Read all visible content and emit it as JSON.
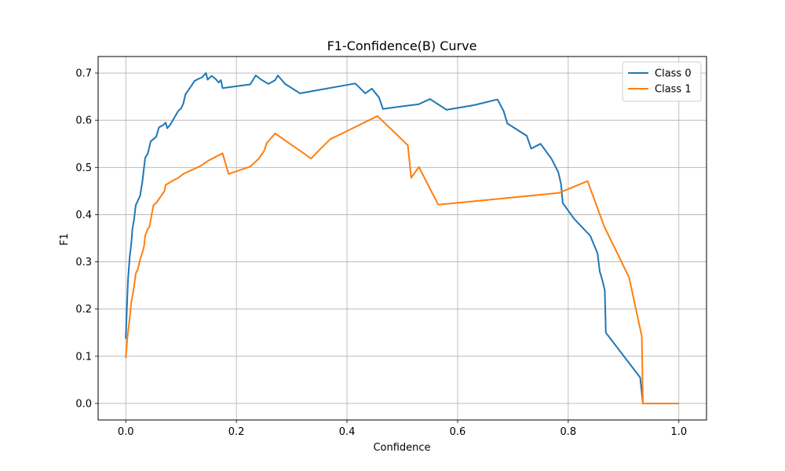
{
  "chart_data": {
    "type": "line",
    "title": "F1-Confidence(B) Curve",
    "xlabel": "Confidence",
    "ylabel": "F1",
    "xlim": [
      -0.05,
      1.05
    ],
    "ylim": [
      -0.035,
      0.735
    ],
    "grid": true,
    "legend_position": "top-right",
    "xticks": [
      "0.0",
      "0.2",
      "0.4",
      "0.6",
      "0.8",
      "1.0"
    ],
    "yticks": [
      "0.0",
      "0.1",
      "0.2",
      "0.3",
      "0.4",
      "0.5",
      "0.6",
      "0.7"
    ],
    "series": [
      {
        "name": "Class 0",
        "color": "#1f77b4",
        "points": [
          [
            0.0,
            0.137
          ],
          [
            0.002,
            0.2
          ],
          [
            0.004,
            0.26
          ],
          [
            0.007,
            0.31
          ],
          [
            0.01,
            0.34
          ],
          [
            0.012,
            0.37
          ],
          [
            0.015,
            0.39
          ],
          [
            0.018,
            0.42
          ],
          [
            0.022,
            0.43
          ],
          [
            0.026,
            0.44
          ],
          [
            0.03,
            0.47
          ],
          [
            0.032,
            0.49
          ],
          [
            0.035,
            0.52
          ],
          [
            0.04,
            0.53
          ],
          [
            0.045,
            0.555
          ],
          [
            0.05,
            0.56
          ],
          [
            0.055,
            0.565
          ],
          [
            0.06,
            0.585
          ],
          [
            0.068,
            0.59
          ],
          [
            0.072,
            0.595
          ],
          [
            0.075,
            0.583
          ],
          [
            0.08,
            0.59
          ],
          [
            0.085,
            0.6
          ],
          [
            0.09,
            0.61
          ],
          [
            0.095,
            0.62
          ],
          [
            0.1,
            0.625
          ],
          [
            0.104,
            0.635
          ],
          [
            0.108,
            0.655
          ],
          [
            0.114,
            0.665
          ],
          [
            0.118,
            0.672
          ],
          [
            0.124,
            0.683
          ],
          [
            0.132,
            0.688
          ],
          [
            0.138,
            0.691
          ],
          [
            0.145,
            0.7
          ],
          [
            0.148,
            0.686
          ],
          [
            0.155,
            0.694
          ],
          [
            0.162,
            0.688
          ],
          [
            0.168,
            0.68
          ],
          [
            0.172,
            0.685
          ],
          [
            0.175,
            0.668
          ],
          [
            0.225,
            0.676
          ],
          [
            0.235,
            0.695
          ],
          [
            0.245,
            0.686
          ],
          [
            0.258,
            0.677
          ],
          [
            0.27,
            0.685
          ],
          [
            0.275,
            0.695
          ],
          [
            0.288,
            0.677
          ],
          [
            0.315,
            0.657
          ],
          [
            0.415,
            0.678
          ],
          [
            0.433,
            0.657
          ],
          [
            0.445,
            0.667
          ],
          [
            0.458,
            0.648
          ],
          [
            0.465,
            0.624
          ],
          [
            0.53,
            0.634
          ],
          [
            0.55,
            0.645
          ],
          [
            0.58,
            0.622
          ],
          [
            0.63,
            0.632
          ],
          [
            0.672,
            0.644
          ],
          [
            0.683,
            0.62
          ],
          [
            0.69,
            0.593
          ],
          [
            0.725,
            0.567
          ],
          [
            0.733,
            0.54
          ],
          [
            0.75,
            0.55
          ],
          [
            0.77,
            0.518
          ],
          [
            0.782,
            0.49
          ],
          [
            0.787,
            0.465
          ],
          [
            0.79,
            0.425
          ],
          [
            0.81,
            0.392
          ],
          [
            0.84,
            0.355
          ],
          [
            0.853,
            0.318
          ],
          [
            0.857,
            0.28
          ],
          [
            0.862,
            0.26
          ],
          [
            0.866,
            0.24
          ],
          [
            0.868,
            0.15
          ],
          [
            0.93,
            0.055
          ],
          [
            0.935,
            0.0
          ],
          [
            1.0,
            0.0
          ]
        ]
      },
      {
        "name": "Class 1",
        "color": "#ff7f0e",
        "points": [
          [
            0.0,
            0.096
          ],
          [
            0.003,
            0.14
          ],
          [
            0.007,
            0.18
          ],
          [
            0.01,
            0.215
          ],
          [
            0.014,
            0.24
          ],
          [
            0.018,
            0.275
          ],
          [
            0.022,
            0.285
          ],
          [
            0.026,
            0.305
          ],
          [
            0.03,
            0.32
          ],
          [
            0.033,
            0.333
          ],
          [
            0.035,
            0.355
          ],
          [
            0.039,
            0.368
          ],
          [
            0.043,
            0.375
          ],
          [
            0.046,
            0.395
          ],
          [
            0.05,
            0.42
          ],
          [
            0.055,
            0.425
          ],
          [
            0.06,
            0.433
          ],
          [
            0.067,
            0.445
          ],
          [
            0.07,
            0.45
          ],
          [
            0.072,
            0.463
          ],
          [
            0.085,
            0.472
          ],
          [
            0.095,
            0.478
          ],
          [
            0.105,
            0.487
          ],
          [
            0.12,
            0.495
          ],
          [
            0.135,
            0.503
          ],
          [
            0.15,
            0.515
          ],
          [
            0.175,
            0.53
          ],
          [
            0.186,
            0.486
          ],
          [
            0.225,
            0.502
          ],
          [
            0.24,
            0.518
          ],
          [
            0.25,
            0.535
          ],
          [
            0.255,
            0.552
          ],
          [
            0.27,
            0.572
          ],
          [
            0.335,
            0.519
          ],
          [
            0.35,
            0.537
          ],
          [
            0.37,
            0.56
          ],
          [
            0.4,
            0.577
          ],
          [
            0.455,
            0.609
          ],
          [
            0.51,
            0.547
          ],
          [
            0.516,
            0.478
          ],
          [
            0.53,
            0.501
          ],
          [
            0.565,
            0.421
          ],
          [
            0.783,
            0.446
          ],
          [
            0.835,
            0.471
          ],
          [
            0.865,
            0.375
          ],
          [
            0.91,
            0.267
          ],
          [
            0.933,
            0.142
          ],
          [
            0.935,
            0.0
          ],
          [
            1.0,
            0.0
          ]
        ]
      }
    ]
  }
}
